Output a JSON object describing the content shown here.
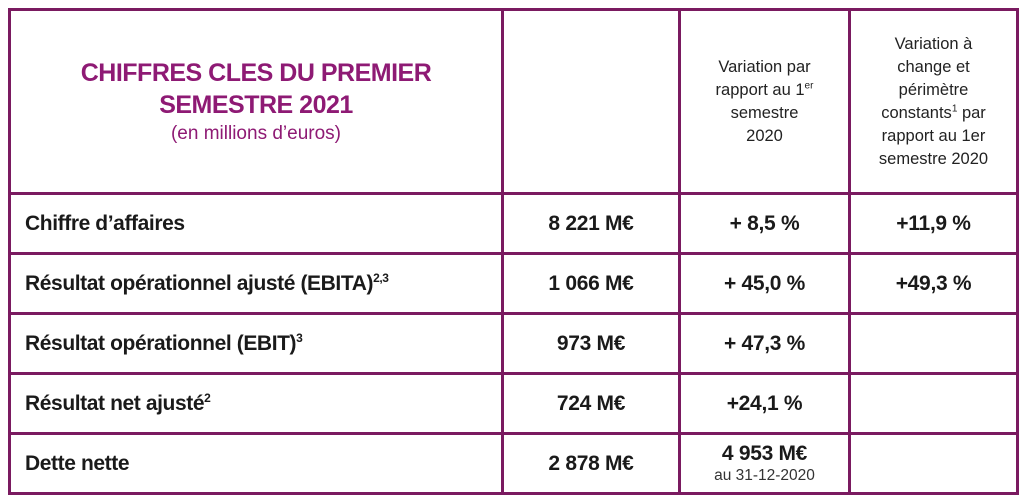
{
  "header": {
    "title_line1": "CHIFFRES CLES DU PREMIER",
    "title_line2": "SEMESTRE 2021",
    "subtitle": "(en millions d’euros)",
    "col_var": {
      "line1": "Variation par",
      "line2_pre": "rapport au 1",
      "line2_sup": "er",
      "line3": "semestre",
      "line4": "2020"
    },
    "col_var_const": {
      "line1": "Variation à",
      "line2": "change et",
      "line3": "périmètre",
      "line4_pre": "constants",
      "line4_sup": "1",
      "line4_post": " par",
      "line5": "rapport au 1er",
      "line6": "semestre 2020"
    }
  },
  "rows": [
    {
      "label": "Chiffre d’affaires",
      "sup": "",
      "value": "8 221 M€",
      "variation": "+ 8,5 %",
      "variation_const": "+11,9 %"
    },
    {
      "label": "Résultat opérationnel ajusté (EBITA)",
      "sup": "2,3",
      "value": "1 066 M€",
      "variation": "+ 45,0 %",
      "variation_const": "+49,3 %"
    },
    {
      "label": "Résultat opérationnel (EBIT)",
      "sup": "3",
      "value": "973 M€",
      "variation": "+ 47,3 %",
      "variation_const": ""
    },
    {
      "label": "Résultat net ajusté",
      "sup": "2",
      "value": "724 M€",
      "variation": "+24,1 %",
      "variation_const": ""
    },
    {
      "label": "Dette nette",
      "sup": "",
      "value": "2 878 M€",
      "variation": "4 953 M€",
      "variation_note": "au 31-12-2020",
      "variation_const": ""
    }
  ],
  "colors": {
    "border": "#7a1a60",
    "title": "#8e1a74"
  }
}
